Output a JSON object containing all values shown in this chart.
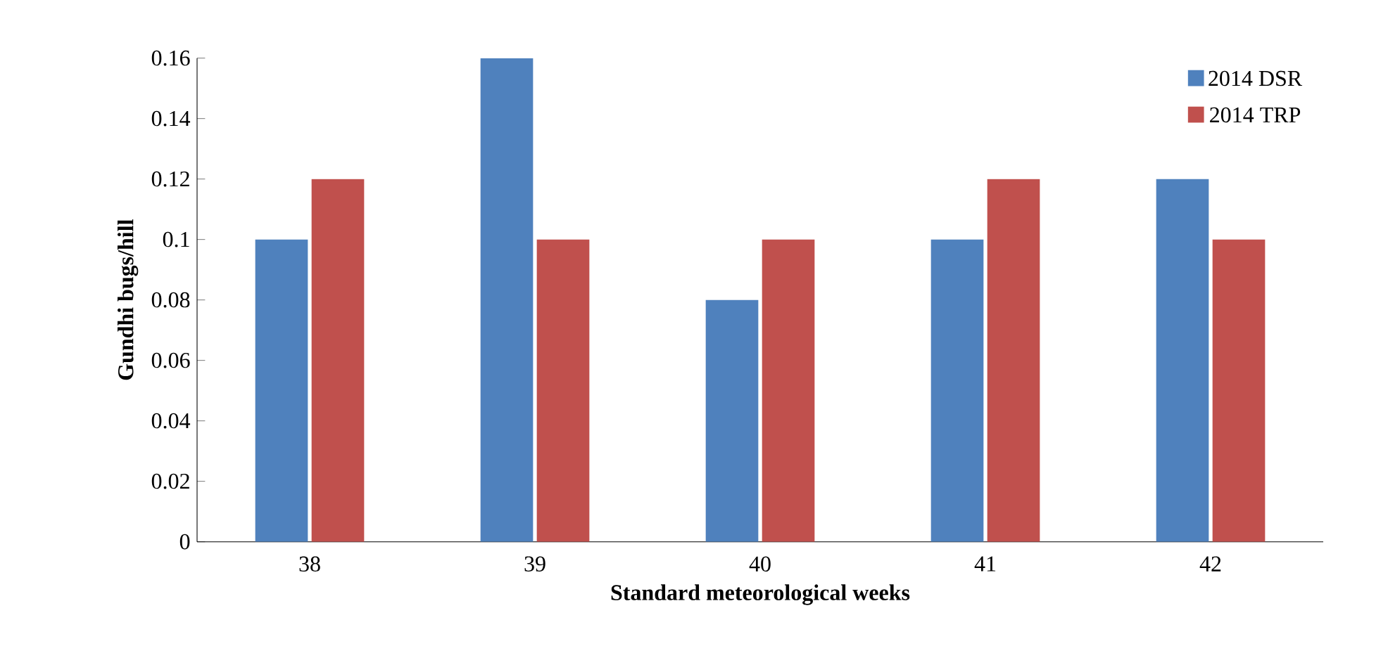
{
  "chart_data": {
    "type": "bar",
    "xlabel": "Standard  meteorological weeks",
    "ylabel": "Gundhi  bugs/hill",
    "categories": [
      "38",
      "39",
      "40",
      "41",
      "42"
    ],
    "series": [
      {
        "name": "2014 DSR",
        "color": "#4f81bd",
        "values": [
          0.1,
          0.16,
          0.08,
          0.1,
          0.12
        ]
      },
      {
        "name": "2014 TRP",
        "color": "#c0504d",
        "values": [
          0.12,
          0.1,
          0.1,
          0.12,
          0.1
        ]
      }
    ],
    "ylim": [
      0,
      0.16
    ],
    "yticks": [
      0,
      0.02,
      0.04,
      0.06,
      0.08,
      0.1,
      0.12,
      0.14,
      0.16
    ],
    "grid": false,
    "legend": "top right"
  }
}
